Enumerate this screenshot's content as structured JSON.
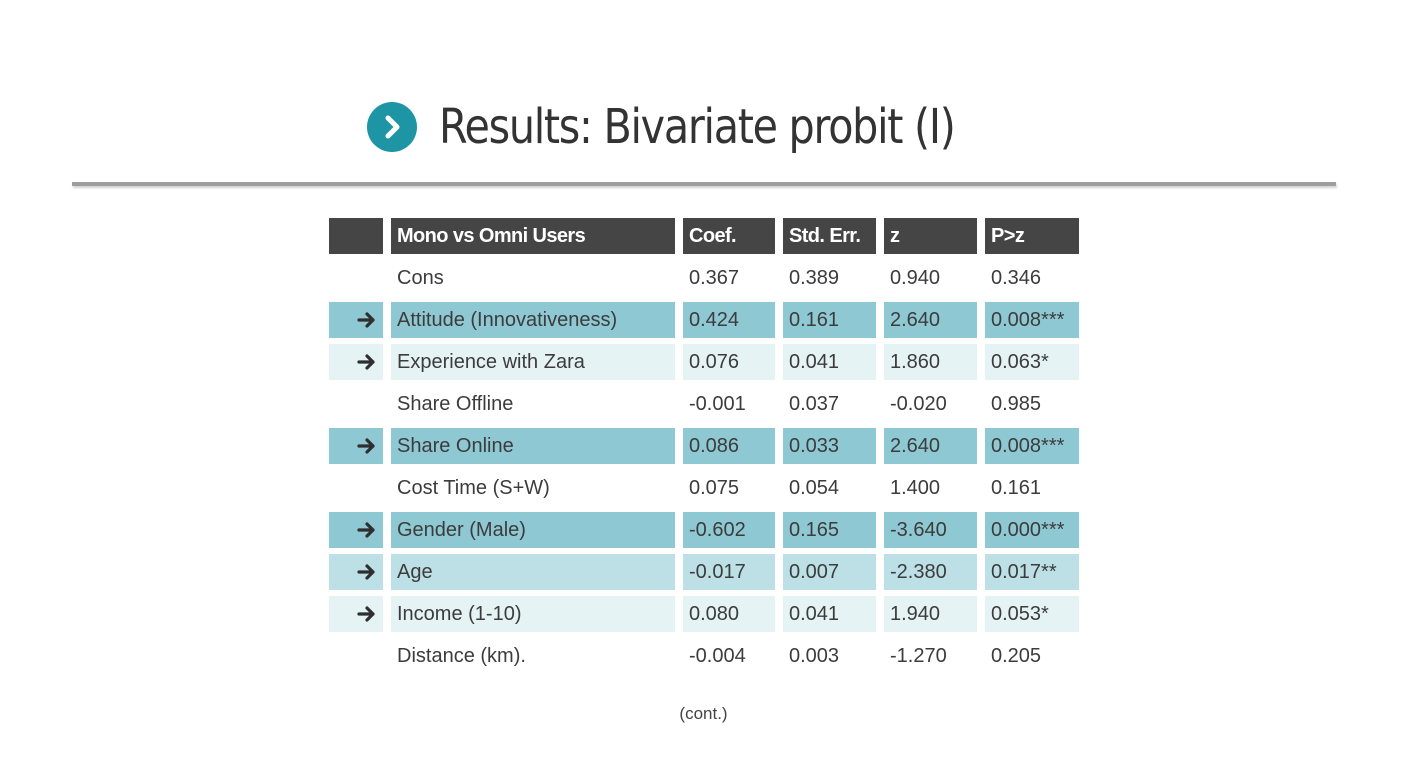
{
  "title": "Results: Bivariate probit (I)",
  "colors": {
    "accent": "#1e95a5",
    "header_bg": "#454545",
    "highlight_dark": "#8ec8d2",
    "highlight_mid": "#bce0e6",
    "highlight_light": "#e5f3f5"
  },
  "icons": {
    "title": "chevron-right-circle-icon",
    "row_marker": "arrow-right-icon"
  },
  "table": {
    "headers": [
      "Mono vs Omni Users",
      "Coef.",
      "Std. Err.",
      "z",
      "P>z"
    ],
    "rows": [
      {
        "label": "Cons",
        "coef": "0.367",
        "se": "0.389",
        "z": "0.940",
        "p": "0.346",
        "highlight": "none",
        "arrow": false
      },
      {
        "label": "Attitude (Innovativeness)",
        "coef": "0.424",
        "se": "0.161",
        "z": "2.640",
        "p": "0.008***",
        "highlight": "dark",
        "arrow": true
      },
      {
        "label": "Experience with Zara",
        "coef": "0.076",
        "se": "0.041",
        "z": "1.860",
        "p": "0.063*",
        "highlight": "light",
        "arrow": true
      },
      {
        "label": "Share Offline",
        "coef": "-0.001",
        "se": "0.037",
        "z": "-0.020",
        "p": "0.985",
        "highlight": "none",
        "arrow": false
      },
      {
        "label": "Share Online",
        "coef": "0.086",
        "se": "0.033",
        "z": "2.640",
        "p": "0.008***",
        "highlight": "dark",
        "arrow": true
      },
      {
        "label": "Cost Time (S+W)",
        "coef": "0.075",
        "se": "0.054",
        "z": "1.400",
        "p": "0.161",
        "highlight": "none",
        "arrow": false
      },
      {
        "label": "Gender (Male)",
        "coef": "-0.602",
        "se": "0.165",
        "z": "-3.640",
        "p": "0.000***",
        "highlight": "dark",
        "arrow": true
      },
      {
        "label": "Age",
        "coef": "-0.017",
        "se": "0.007",
        "z": "-2.380",
        "p": "0.017**",
        "highlight": "mid",
        "arrow": true
      },
      {
        "label": "Income (1-10)",
        "coef": "0.080",
        "se": "0.041",
        "z": "1.940",
        "p": "0.053*",
        "highlight": "light",
        "arrow": true
      },
      {
        "label": "Distance (km).",
        "coef": "-0.004",
        "se": "0.003",
        "z": "-1.270",
        "p": "0.205",
        "highlight": "none",
        "arrow": false
      }
    ]
  },
  "footer": "(cont.)"
}
